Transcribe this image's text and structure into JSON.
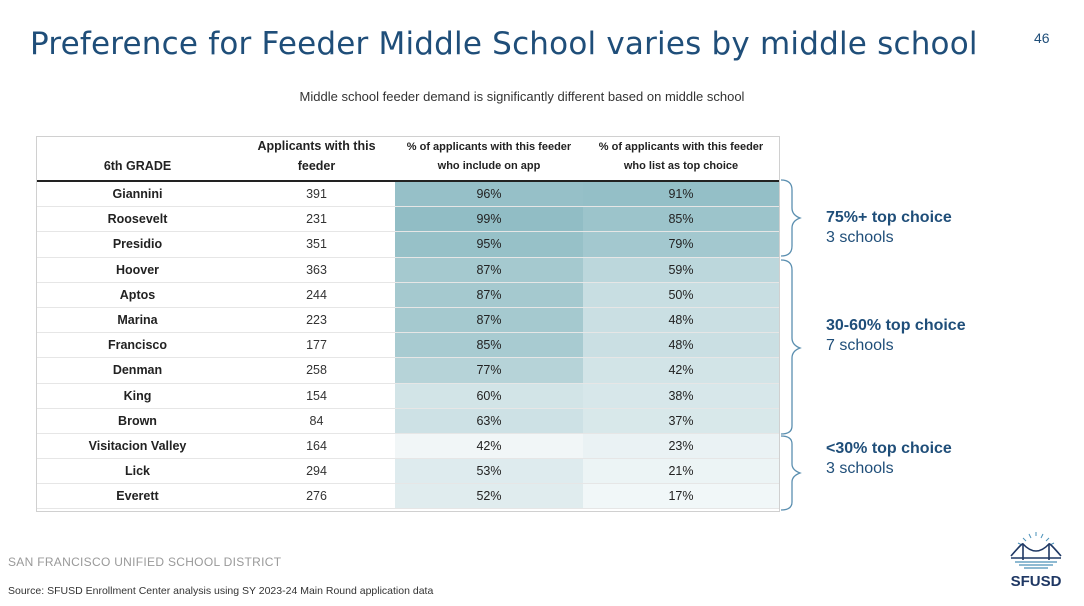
{
  "title": "Preference for Feeder Middle School varies by middle school",
  "page_number": "46",
  "subtitle": "Middle school feeder demand is significantly different based on middle school",
  "table": {
    "headers": [
      "6th GRADE",
      "Applicants with this feeder",
      "% of applicants with this feeder who include on app",
      "% of applicants with this feeder who list as top choice"
    ],
    "rows": [
      {
        "school": "Giannini",
        "applicants": "391",
        "include": "96%",
        "top": "91%"
      },
      {
        "school": "Roosevelt",
        "applicants": "231",
        "include": "99%",
        "top": "85%"
      },
      {
        "school": "Presidio",
        "applicants": "351",
        "include": "95%",
        "top": "79%"
      },
      {
        "school": "Hoover",
        "applicants": "363",
        "include": "87%",
        "top": "59%"
      },
      {
        "school": "Aptos",
        "applicants": "244",
        "include": "87%",
        "top": "50%"
      },
      {
        "school": "Marina",
        "applicants": "223",
        "include": "87%",
        "top": "48%"
      },
      {
        "school": "Francisco",
        "applicants": "177",
        "include": "85%",
        "top": "48%"
      },
      {
        "school": "Denman",
        "applicants": "258",
        "include": "77%",
        "top": "42%"
      },
      {
        "school": "King",
        "applicants": "154",
        "include": "60%",
        "top": "38%"
      },
      {
        "school": "Brown",
        "applicants": "84",
        "include": "63%",
        "top": "37%"
      },
      {
        "school": "Visitacion Valley",
        "applicants": "164",
        "include": "42%",
        "top": "23%"
      },
      {
        "school": "Lick",
        "applicants": "294",
        "include": "53%",
        "top": "21%"
      },
      {
        "school": "Everett",
        "applicants": "276",
        "include": "52%",
        "top": "17%"
      }
    ]
  },
  "groups": [
    {
      "heading": "75%+ top choice",
      "count": "3 schools"
    },
    {
      "heading": "30-60% top choice",
      "count": "7 schools"
    },
    {
      "heading": "<30% top choice",
      "count": "3 schools"
    }
  ],
  "footer": {
    "district": "SAN FRANCISCO UNIFIED SCHOOL DISTRICT",
    "source": "Source: SFUSD Enrollment Center analysis using SY 2023-24 Main Round application data"
  },
  "logo": {
    "text": "SFUSD",
    "icon": "golden-gate-bridge-icon"
  },
  "colors": {
    "title": "#1f4e79",
    "heat_dark": "#8fbcc4",
    "heat_light": "#f4f8f9"
  }
}
